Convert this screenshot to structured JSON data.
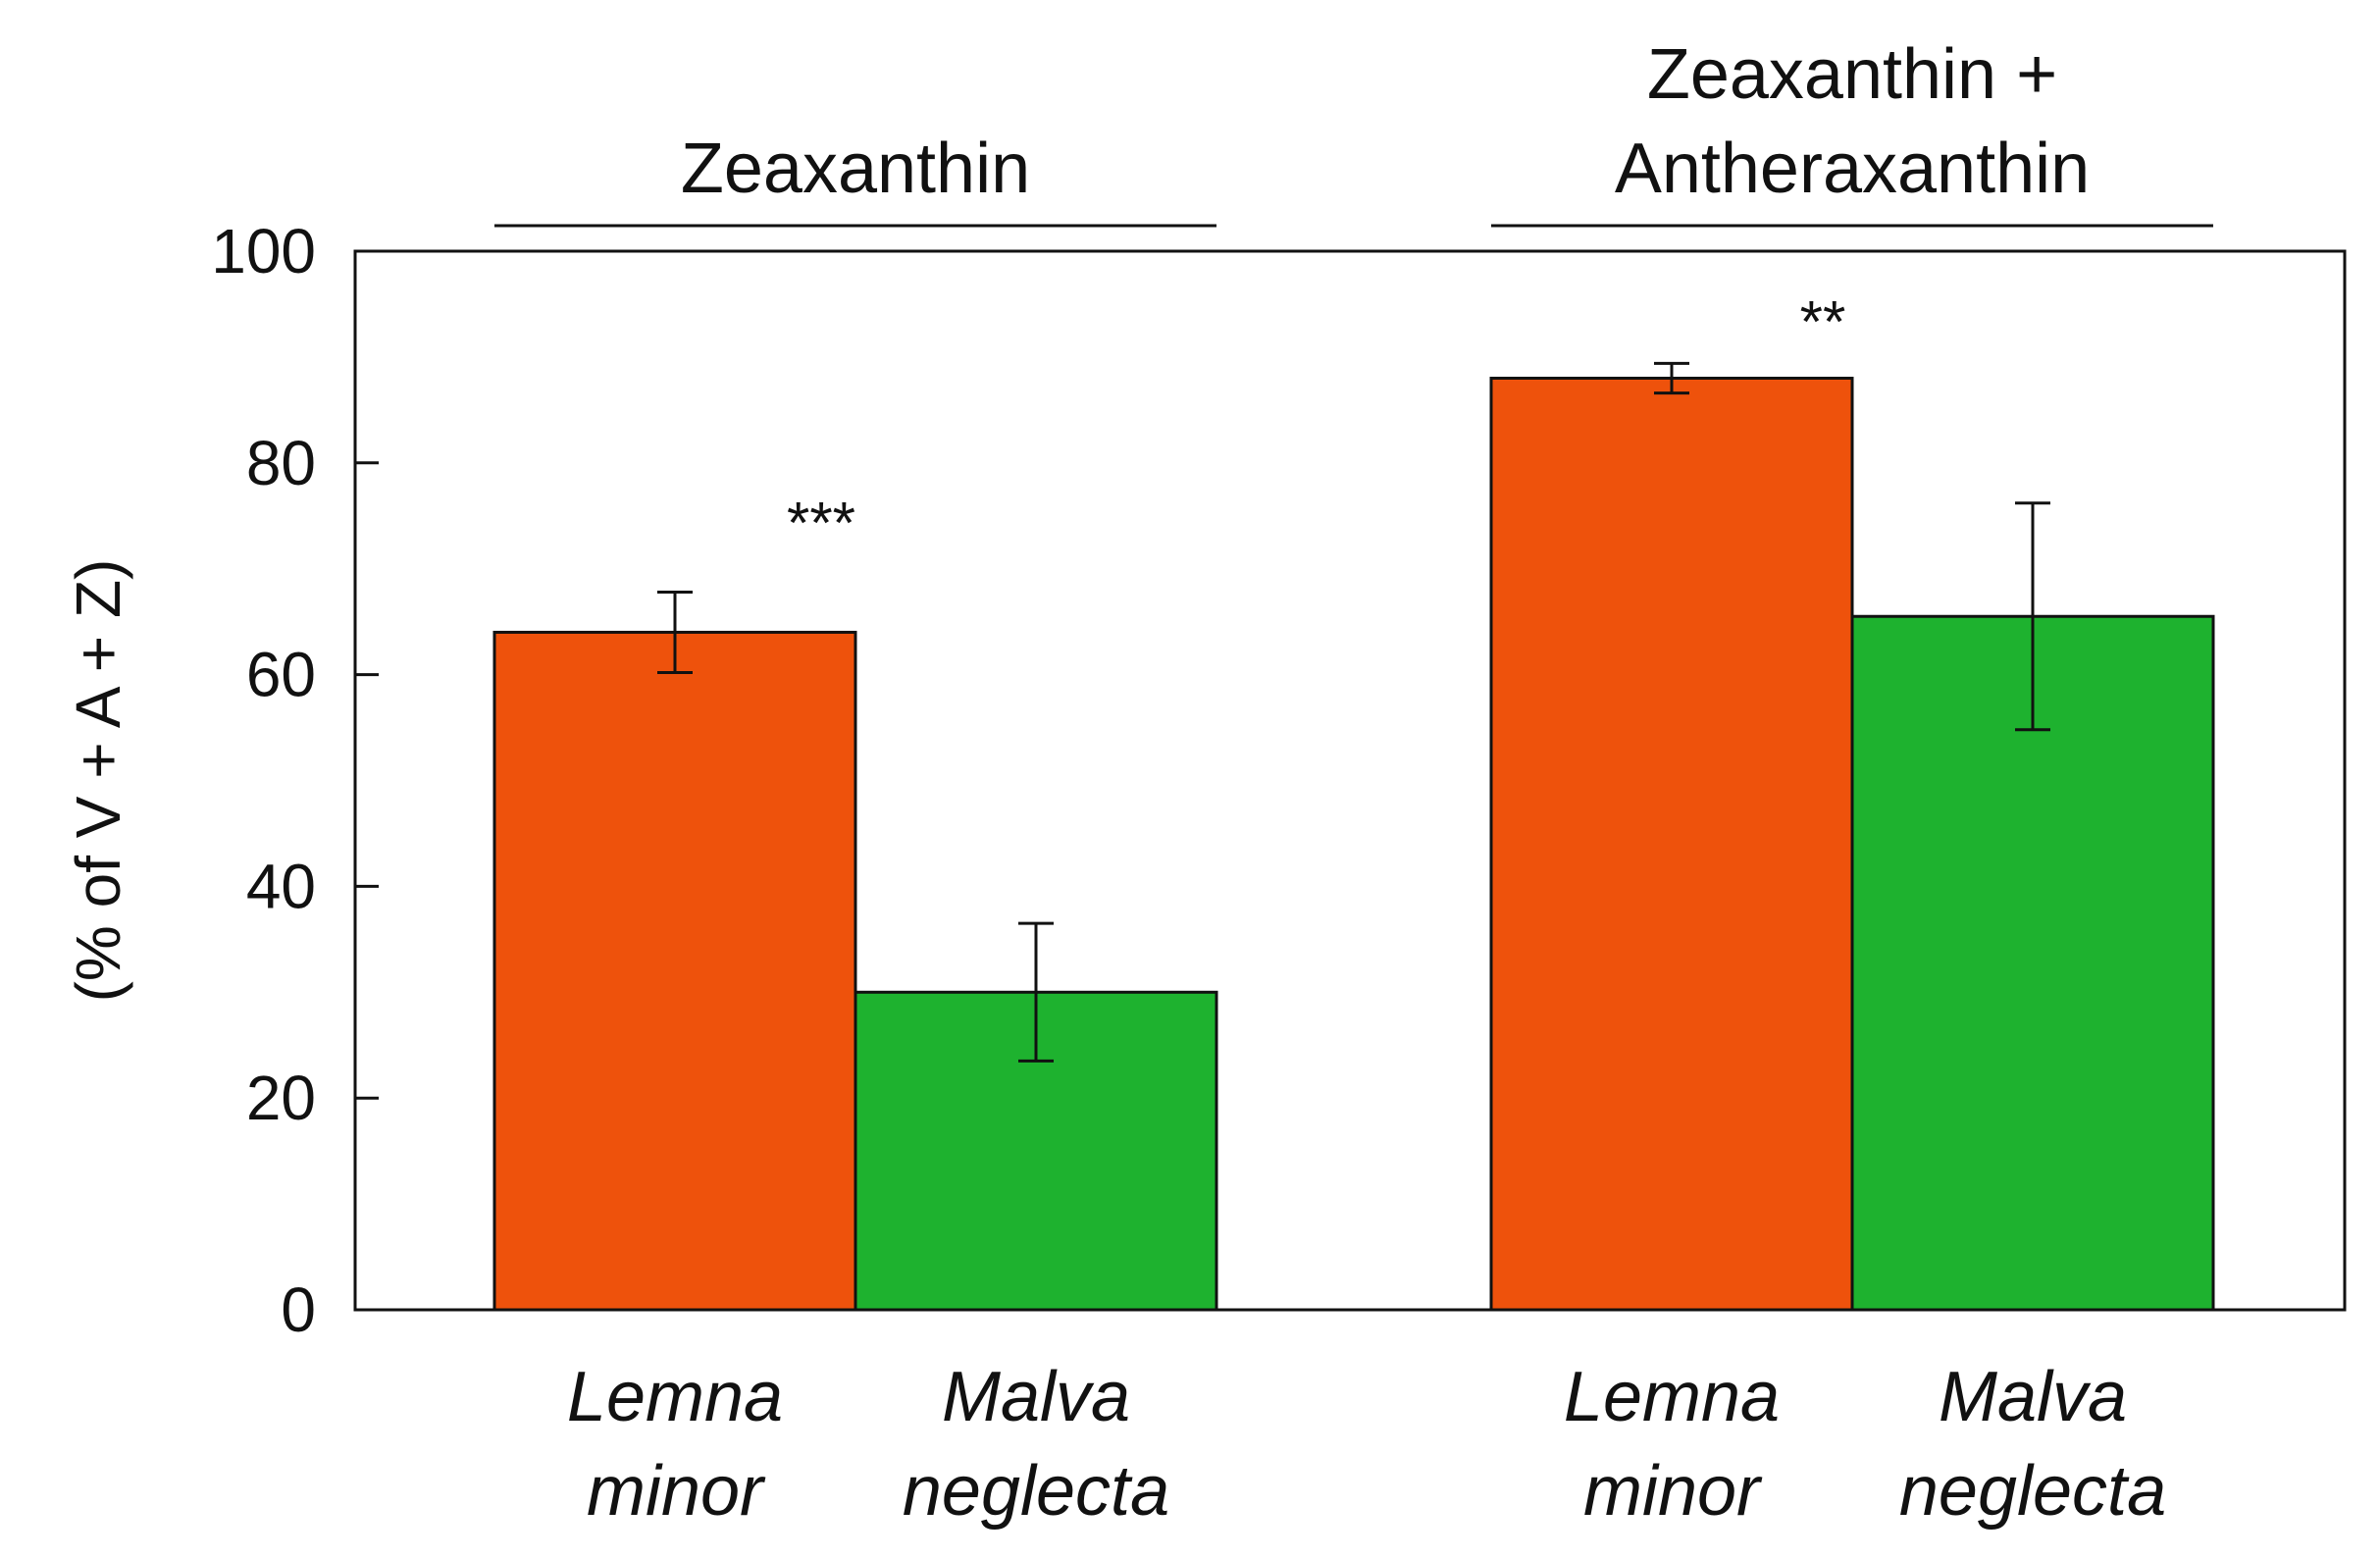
{
  "chart_data": {
    "type": "bar",
    "ylabel": "(% of V + A + Z)",
    "ylim": [
      0,
      100
    ],
    "yticks": [
      0,
      20,
      40,
      60,
      80,
      100
    ],
    "grid": false,
    "legend": "none",
    "groups": [
      {
        "title_lines": [
          "Zeaxanthin"
        ],
        "bars": [
          {
            "label_lines": [
              "Lemna",
              "minor"
            ],
            "value": 64,
            "error": 3.8,
            "color": "#ee520c"
          },
          {
            "label_lines": [
              "Malva",
              "neglecta"
            ],
            "value": 30,
            "error": 6.5,
            "color": "#1eb22f"
          }
        ],
        "significance": "***"
      },
      {
        "title_lines": [
          "Zeaxanthin +",
          "Antheraxanthin"
        ],
        "bars": [
          {
            "label_lines": [
              "Lemna",
              "minor"
            ],
            "value": 88,
            "error": 1.4,
            "color": "#ee520c"
          },
          {
            "label_lines": [
              "Malva",
              "neglecta"
            ],
            "value": 65.5,
            "error": 10.7,
            "color": "#1eb22f"
          }
        ],
        "significance": "**"
      }
    ]
  }
}
